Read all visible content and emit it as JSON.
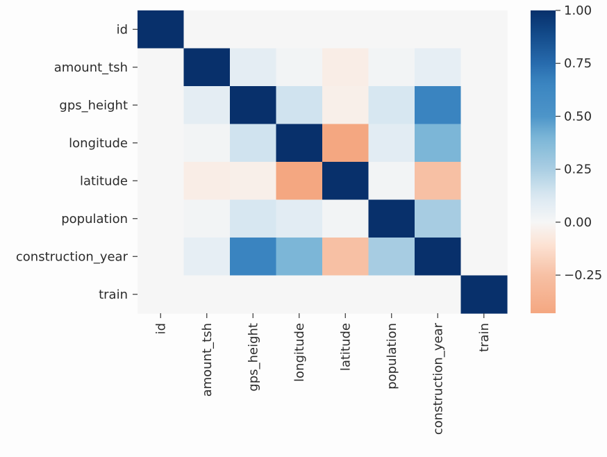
{
  "chart_data": {
    "type": "heatmap",
    "title": "",
    "xlabel": "",
    "ylabel": "",
    "variables": [
      "id",
      "amount_tsh",
      "gps_height",
      "longitude",
      "latitude",
      "population",
      "construction_year",
      "train"
    ],
    "matrix": [
      [
        1.0,
        0.0,
        0.0,
        0.0,
        0.0,
        0.0,
        0.0,
        0.0
      ],
      [
        0.0,
        1.0,
        0.08,
        0.02,
        -0.05,
        0.02,
        0.07,
        0.0
      ],
      [
        0.0,
        0.08,
        1.0,
        0.15,
        -0.04,
        0.13,
        0.66,
        0.0
      ],
      [
        0.0,
        0.02,
        0.15,
        1.0,
        -0.43,
        0.09,
        0.4,
        0.0
      ],
      [
        0.0,
        -0.05,
        -0.04,
        -0.43,
        1.0,
        0.02,
        -0.25,
        0.0
      ],
      [
        0.0,
        0.02,
        0.13,
        0.09,
        0.02,
        1.0,
        0.26,
        0.0
      ],
      [
        0.0,
        0.07,
        0.66,
        0.4,
        -0.25,
        0.26,
        1.0,
        0.0
      ],
      [
        0.0,
        0.0,
        0.0,
        0.0,
        0.0,
        0.0,
        0.0,
        1.0
      ]
    ],
    "colorbar": {
      "min": -0.43,
      "max": 1.0,
      "ticks": [
        1.0,
        0.75,
        0.5,
        0.25,
        0.0,
        -0.25
      ],
      "tick_labels": [
        "1.00",
        "0.75",
        "0.50",
        "0.25",
        "0.00",
        "−0.25"
      ]
    },
    "colormap": "RdBu",
    "grid": false,
    "legend": "colorbar-right"
  }
}
